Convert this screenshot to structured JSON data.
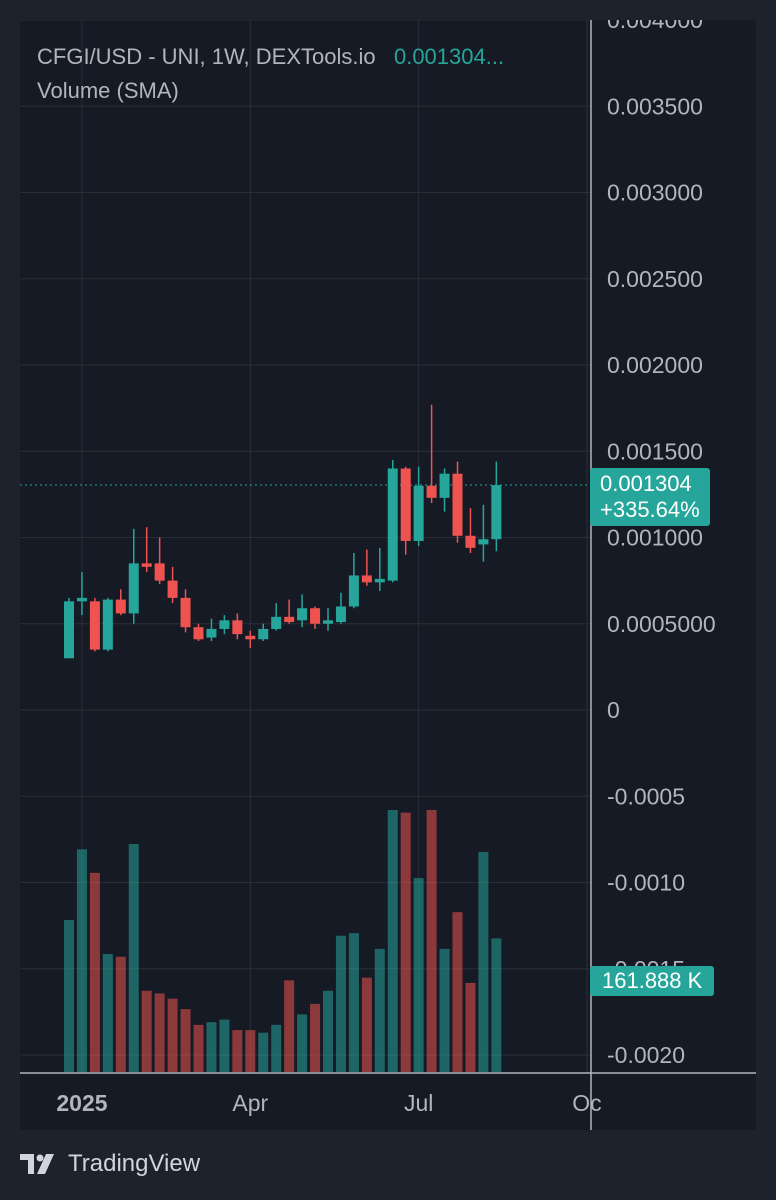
{
  "legend": {
    "symbol_line": "CFGI/USD - UNI, 1W, DEXTools.io",
    "last_price": "0.001304...",
    "volume_line": "Volume (SMA)"
  },
  "price_tag": {
    "price": "0.001304",
    "change": "+335.64%"
  },
  "volume_tag": "161.888 K",
  "footer": {
    "brand": "TradingView"
  },
  "colors": {
    "up": "#26a69a",
    "down": "#ef5350",
    "background": "#161a25",
    "grid": "#2a2e39",
    "text": "#b2b5be"
  },
  "chart_data": {
    "type": "candlestick",
    "timeframe": "1W",
    "y_axis_ticks": [
      "0.004000",
      "0.003500",
      "0.003000",
      "0.002500",
      "0.002000",
      "0.001500",
      "0.001000",
      "0.0005000",
      "0",
      "-0.0005",
      "-0.0010",
      "-0.0015",
      "-0.0020"
    ],
    "y_axis_values": [
      0.004,
      0.0035,
      0.003,
      0.0025,
      0.002,
      0.0015,
      0.001,
      0.0005,
      0,
      -0.0005,
      -0.001,
      -0.0015,
      -0.002
    ],
    "ylim": [
      -0.002,
      0.004
    ],
    "x_axis_labels": [
      {
        "label": "2025",
        "bar_index": 1,
        "bold": true
      },
      {
        "label": "Apr",
        "bar_index": 14,
        "bold": false
      },
      {
        "label": "Jul",
        "bar_index": 27,
        "bold": false
      },
      {
        "label": "Oc",
        "bar_index": 40,
        "bold": false
      }
    ],
    "last_price": 0.001304,
    "candles": [
      {
        "o": 0.0003,
        "h": 0.00065,
        "l": 0.0003,
        "c": 0.00063
      },
      {
        "o": 0.00063,
        "h": 0.0008,
        "l": 0.00055,
        "c": 0.00065
      },
      {
        "o": 0.00063,
        "h": 0.00065,
        "l": 0.00034,
        "c": 0.00035
      },
      {
        "o": 0.00035,
        "h": 0.00065,
        "l": 0.00034,
        "c": 0.00064
      },
      {
        "o": 0.00064,
        "h": 0.0007,
        "l": 0.00055,
        "c": 0.00056
      },
      {
        "o": 0.00056,
        "h": 0.00105,
        "l": 0.0005,
        "c": 0.00085
      },
      {
        "o": 0.00085,
        "h": 0.00106,
        "l": 0.0008,
        "c": 0.00083
      },
      {
        "o": 0.00085,
        "h": 0.001,
        "l": 0.00073,
        "c": 0.00075
      },
      {
        "o": 0.00075,
        "h": 0.00083,
        "l": 0.00062,
        "c": 0.00065
      },
      {
        "o": 0.00065,
        "h": 0.0007,
        "l": 0.00045,
        "c": 0.00048
      },
      {
        "o": 0.00048,
        "h": 0.0005,
        "l": 0.0004,
        "c": 0.00041
      },
      {
        "o": 0.00042,
        "h": 0.00053,
        "l": 0.0004,
        "c": 0.00047
      },
      {
        "o": 0.00047,
        "h": 0.00055,
        "l": 0.00044,
        "c": 0.00052
      },
      {
        "o": 0.00052,
        "h": 0.00056,
        "l": 0.00041,
        "c": 0.00044
      },
      {
        "o": 0.00043,
        "h": 0.00046,
        "l": 0.00036,
        "c": 0.00041
      },
      {
        "o": 0.00041,
        "h": 0.0005,
        "l": 0.0004,
        "c": 0.00047
      },
      {
        "o": 0.00047,
        "h": 0.00062,
        "l": 0.00046,
        "c": 0.00054
      },
      {
        "o": 0.00054,
        "h": 0.00064,
        "l": 0.0005,
        "c": 0.00051
      },
      {
        "o": 0.00052,
        "h": 0.00067,
        "l": 0.00048,
        "c": 0.00059
      },
      {
        "o": 0.00059,
        "h": 0.0006,
        "l": 0.00047,
        "c": 0.0005
      },
      {
        "o": 0.0005,
        "h": 0.00059,
        "l": 0.00046,
        "c": 0.00052
      },
      {
        "o": 0.00051,
        "h": 0.00068,
        "l": 0.0005,
        "c": 0.0006
      },
      {
        "o": 0.0006,
        "h": 0.00091,
        "l": 0.00059,
        "c": 0.00078
      },
      {
        "o": 0.00078,
        "h": 0.00093,
        "l": 0.00072,
        "c": 0.00074
      },
      {
        "o": 0.00074,
        "h": 0.00094,
        "l": 0.00069,
        "c": 0.00076
      },
      {
        "o": 0.00075,
        "h": 0.00145,
        "l": 0.00074,
        "c": 0.0014
      },
      {
        "o": 0.0014,
        "h": 0.00141,
        "l": 0.0009,
        "c": 0.00098
      },
      {
        "o": 0.00098,
        "h": 0.00141,
        "l": 0.00095,
        "c": 0.0013
      },
      {
        "o": 0.0013,
        "h": 0.00177,
        "l": 0.0012,
        "c": 0.00123
      },
      {
        "o": 0.00123,
        "h": 0.0014,
        "l": 0.00115,
        "c": 0.00137
      },
      {
        "o": 0.00137,
        "h": 0.00144,
        "l": 0.00097,
        "c": 0.00101
      },
      {
        "o": 0.00101,
        "h": 0.00117,
        "l": 0.00091,
        "c": 0.00094
      },
      {
        "o": 0.00096,
        "h": 0.00119,
        "l": 0.00086,
        "c": 0.00099
      },
      {
        "o": 0.00099,
        "h": 0.00144,
        "l": 0.00092,
        "c": 0.001304
      }
    ],
    "volume": [
      0.58,
      0.85,
      0.76,
      0.45,
      0.44,
      0.87,
      0.31,
      0.3,
      0.28,
      0.24,
      0.18,
      0.19,
      0.2,
      0.16,
      0.16,
      0.15,
      0.18,
      0.35,
      0.22,
      0.26,
      0.31,
      0.52,
      0.53,
      0.36,
      0.47,
      1.0,
      0.99,
      0.74,
      1.0,
      0.47,
      0.61,
      0.34,
      0.84,
      0.51
    ],
    "volume_unit": "relative"
  }
}
